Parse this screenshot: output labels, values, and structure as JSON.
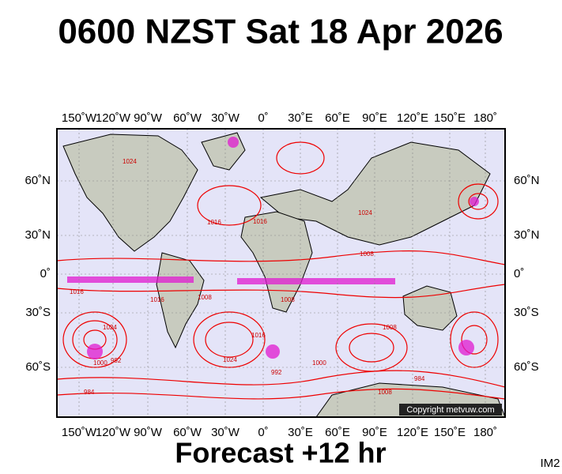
{
  "title": "0600 NZST Sat 18 Apr 2026",
  "longitude_labels": [
    "150˚W",
    "120˚W",
    "90˚W",
    "60˚W",
    "30˚W",
    "0˚",
    "30˚E",
    "60˚E",
    "90˚E",
    "120˚E",
    "150˚E",
    "180˚"
  ],
  "latitude_labels": [
    "60˚N",
    "30˚N",
    "0˚",
    "30˚S",
    "60˚S"
  ],
  "isobar_labels": [
    "1024",
    "1016",
    "1016",
    "1024",
    "1008",
    "1016",
    "1024",
    "1016",
    "1008",
    "1016",
    "1008",
    "1024",
    "1008",
    "1000",
    "992",
    "984",
    "1000",
    "984",
    "992",
    "1008"
  ],
  "copyright": "Copyright metvuw.com",
  "forecast": "Forecast +12 hr",
  "image_id": "IM2"
}
